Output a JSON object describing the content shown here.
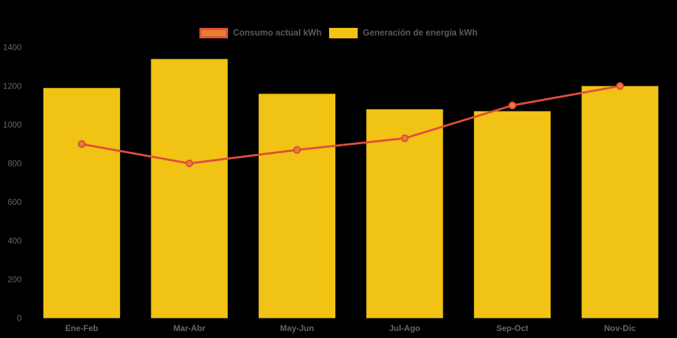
{
  "chart_data": {
    "type": "bar",
    "subtype": "bar-with-line-overlay",
    "categories": [
      "Ene-Feb",
      "Mar-Abr",
      "May-Jun",
      "Jul-Ago",
      "Sep-Oct",
      "Nov-Dic"
    ],
    "series": [
      {
        "name": "Consumo actual kWh",
        "type": "line",
        "values": [
          900,
          800,
          870,
          930,
          1100,
          1200
        ],
        "color": "#E04D3C",
        "marker_fill": "#E67F2B"
      },
      {
        "name": "Generación de energía kWh",
        "type": "bar",
        "values": [
          1190,
          1340,
          1160,
          1080,
          1070,
          1200
        ],
        "color": "#F0C314"
      }
    ],
    "title": "",
    "xlabel": "",
    "ylabel": "",
    "ylim": [
      0,
      1400
    ],
    "yticks": [
      0,
      200,
      400,
      600,
      800,
      1000,
      1200,
      1400
    ],
    "grid": false,
    "legend_position": "top",
    "background_color": "#000000",
    "text_color": "#666666"
  }
}
